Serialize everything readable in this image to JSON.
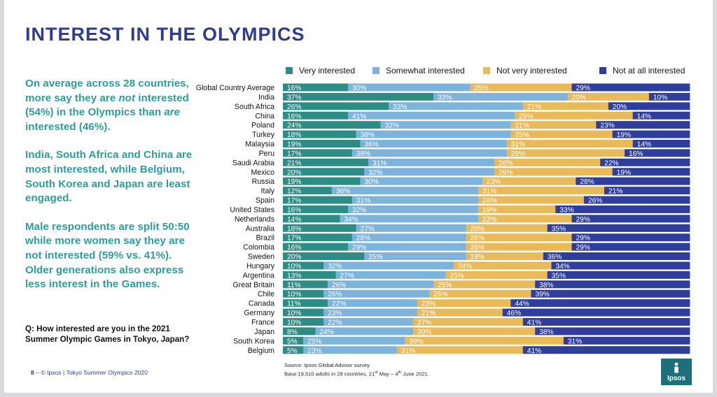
{
  "title": "INTEREST IN THE OLYMPICS",
  "left_text": {
    "p1_a": "On average across 28 countries, more say they are ",
    "p1_em1": "not",
    "p1_b": " interested (54%) in the Olympics than ",
    "p1_em2": "are",
    "p1_c": " interested (46%).",
    "p2": "India, South Africa and China are most interested, while Belgium, South Korea and Japan are least engaged.",
    "p3": "Male respondents are split 50:50 while more women say they are not interested (59% vs. 41%). Older generations also express less interest in the Games."
  },
  "question": "Q: How interested are you in the 2021 Summer Olympic Games in Tokyo, Japan?",
  "footer": {
    "page": "8",
    "sep": "–",
    "text": "© Ipsos | Tokyo Summer Olympics 2020",
    "source_line1": "Source: Ipsos Global Advisor survey",
    "source_base": "Base:19,510 adults in 28 countries, 21",
    "source_sup1": "st",
    "source_mid": " May – 4",
    "source_sup2": "th",
    "source_end": " June 2021."
  },
  "logo_text": "Ipsos",
  "colors": {
    "very": "#2e8c86",
    "somewhat": "#7eb4dc",
    "not_very": "#e8ba5a",
    "not_at_all": "#2f3e9c",
    "title": "#2f3c8f",
    "body_text": "#2e9c9f"
  },
  "chart_data": {
    "type": "bar",
    "orientation": "horizontal",
    "stacked": true,
    "legend_position": "top",
    "xlim": [
      0,
      100
    ],
    "categories": [
      "Global Country Average",
      "India",
      "South Africa",
      "China",
      "Poland",
      "Turkey",
      "Malaysia",
      "Peru",
      "Saudi Arabia",
      "Mexico",
      "Russia",
      "Italy",
      "Spain",
      "United States",
      "Netherlands",
      "Australia",
      "Brazil",
      "Colombia",
      "Sweden",
      "Hungary",
      "Argentina",
      "Great Britain",
      "Chile",
      "Canada",
      "Germany",
      "France",
      "Japan",
      "South Korea",
      "Belgium"
    ],
    "series": [
      {
        "name": "Very interested",
        "values": [
          16,
          37,
          26,
          16,
          24,
          18,
          19,
          17,
          21,
          20,
          19,
          12,
          17,
          16,
          14,
          18,
          17,
          16,
          20,
          10,
          13,
          11,
          10,
          11,
          10,
          10,
          8,
          5,
          5
        ]
      },
      {
        "name": "Somewhat interested",
        "values": [
          30,
          33,
          33,
          41,
          32,
          38,
          36,
          38,
          31,
          32,
          30,
          36,
          31,
          32,
          34,
          27,
          28,
          29,
          25,
          32,
          27,
          26,
          26,
          22,
          23,
          22,
          24,
          25,
          23
        ]
      },
      {
        "name": "Not very interested",
        "values": [
          25,
          20,
          21,
          29,
          21,
          25,
          31,
          29,
          26,
          29,
          23,
          31,
          26,
          19,
          23,
          20,
          26,
          26,
          19,
          24,
          25,
          25,
          25,
          23,
          21,
          27,
          30,
          39,
          31
        ]
      },
      {
        "name": "Not at all interested",
        "values": [
          29,
          10,
          20,
          14,
          23,
          19,
          14,
          16,
          22,
          19,
          28,
          21,
          26,
          33,
          29,
          35,
          29,
          29,
          36,
          34,
          35,
          38,
          39,
          44,
          46,
          41,
          38,
          31,
          41
        ]
      }
    ]
  }
}
